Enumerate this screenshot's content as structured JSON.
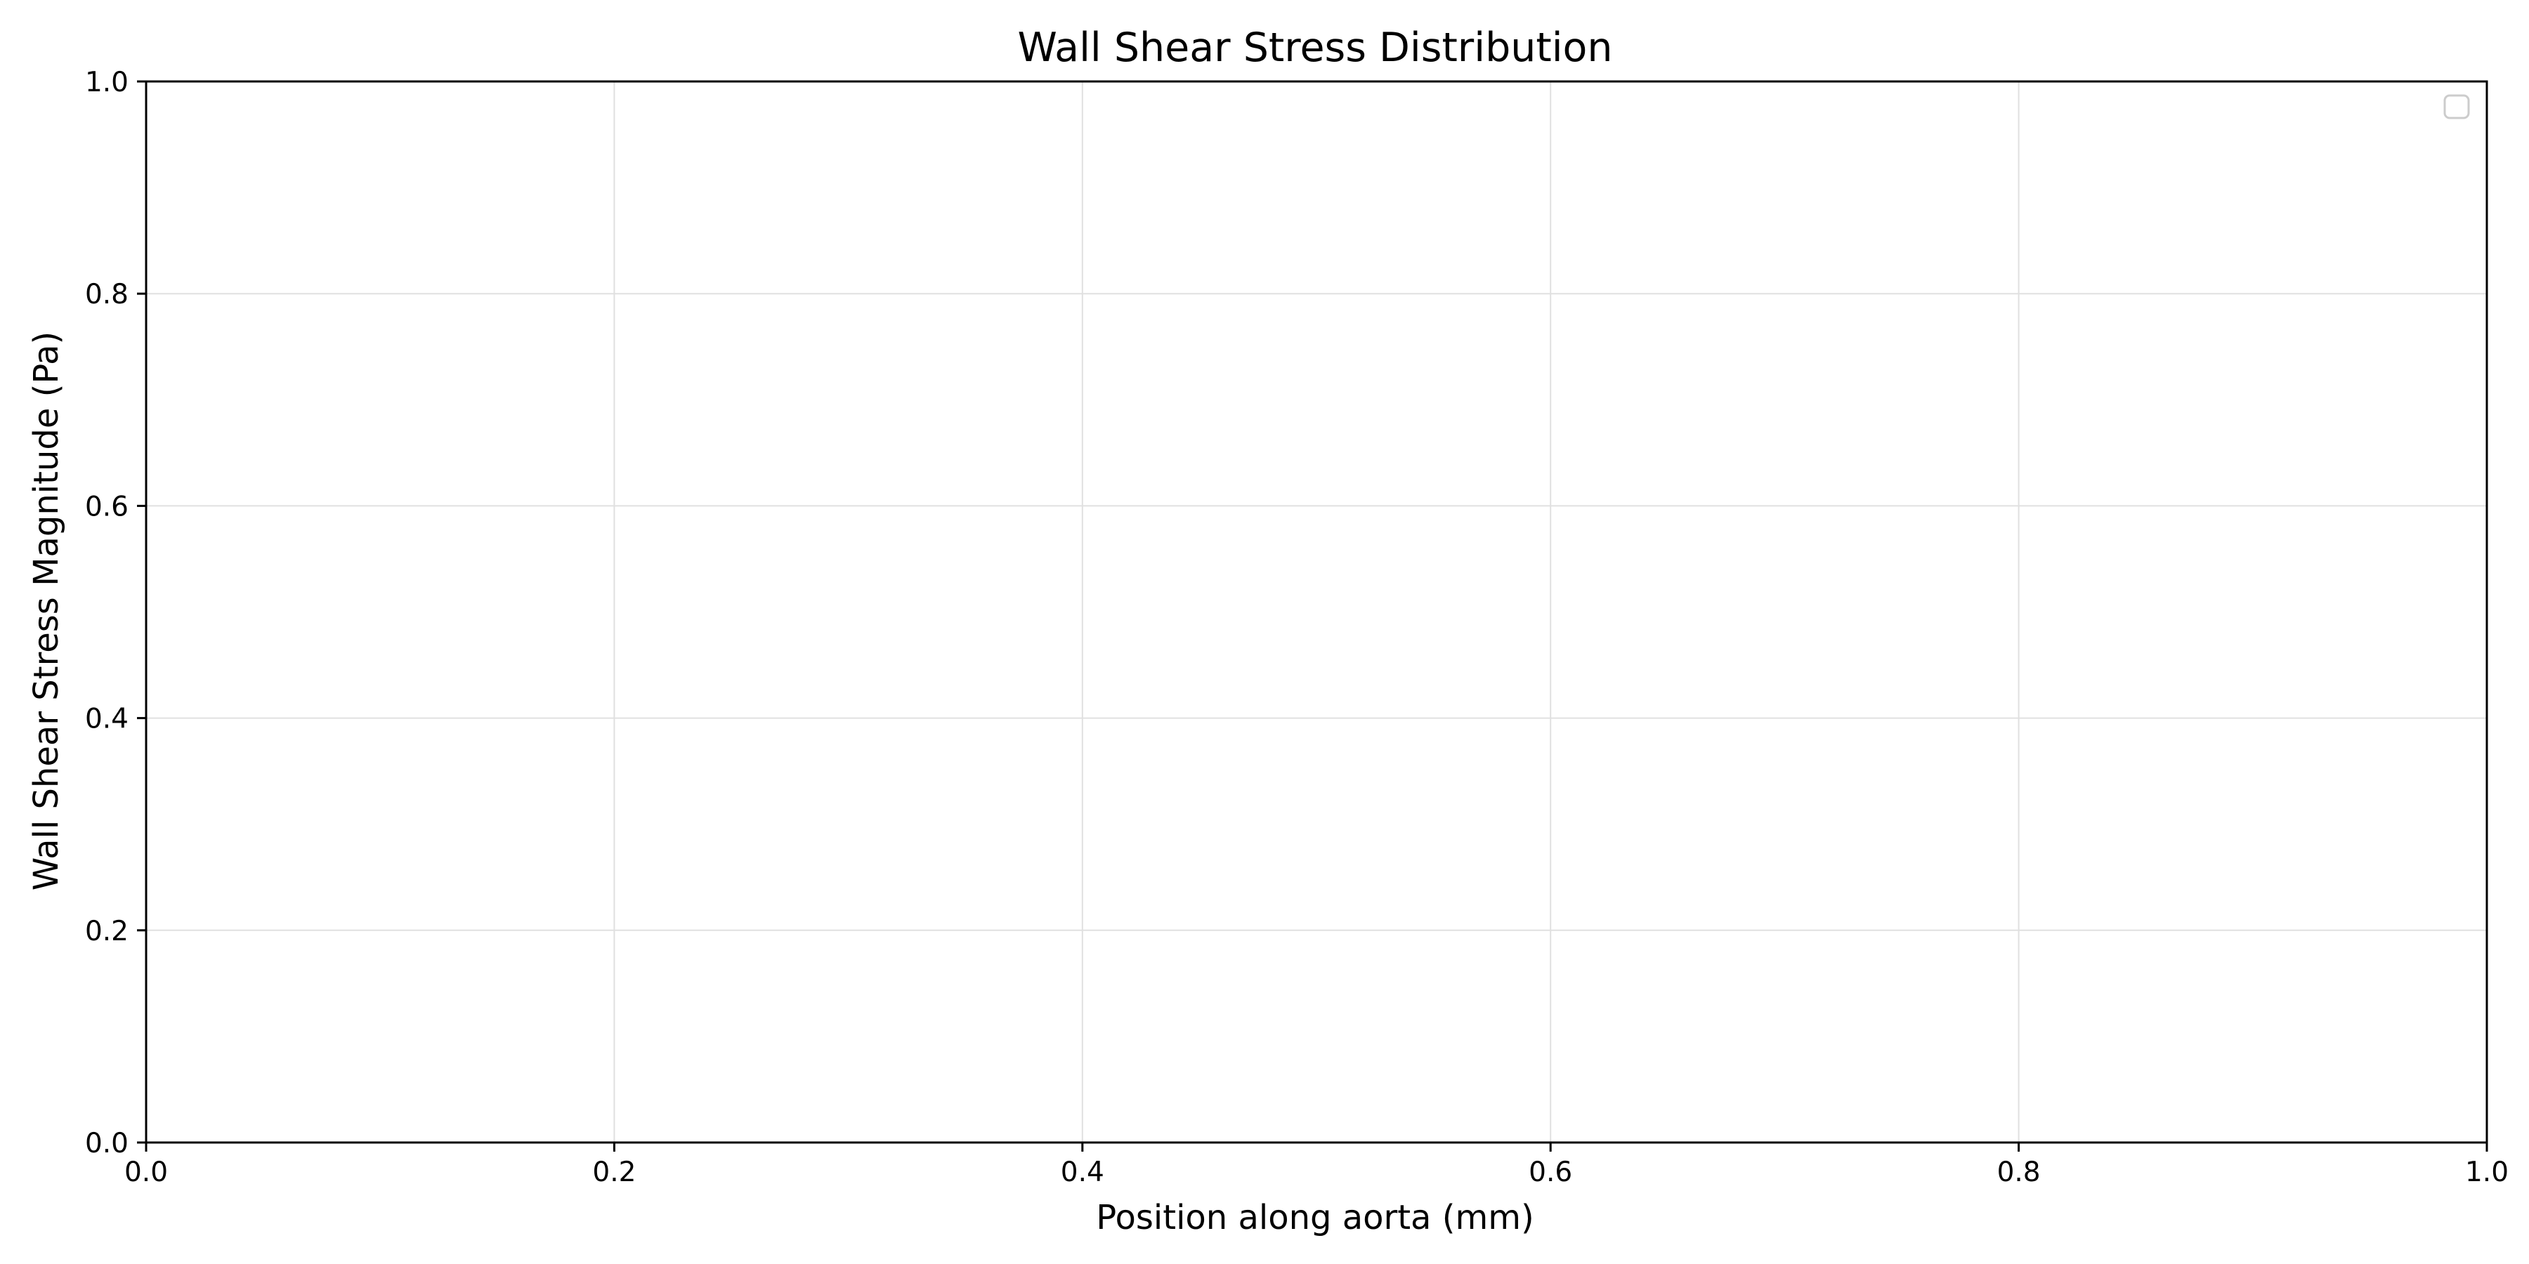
{
  "chart_data": {
    "type": "line",
    "title": "Wall Shear Stress Distribution",
    "xlabel": "Position along aorta (mm)",
    "ylabel": "Wall Shear Stress Magnitude (Pa)",
    "xlim": [
      0.0,
      1.0
    ],
    "ylim": [
      0.0,
      1.0
    ],
    "xticks": [
      0.0,
      0.2,
      0.4,
      0.6,
      0.8,
      1.0
    ],
    "yticks": [
      0.0,
      0.2,
      0.4,
      0.6,
      0.8,
      1.0
    ],
    "xtick_labels": [
      "0.0",
      "0.2",
      "0.4",
      "0.6",
      "0.8",
      "1.0"
    ],
    "ytick_labels": [
      "0.0",
      "0.2",
      "0.4",
      "0.6",
      "0.8",
      "1.0"
    ],
    "grid": true,
    "legend": {
      "placement": "top-right",
      "entries": []
    },
    "series": []
  },
  "colors": {
    "grid": "#e0e0e0",
    "axis": "#000000",
    "legend_border": "#cccccc"
  }
}
